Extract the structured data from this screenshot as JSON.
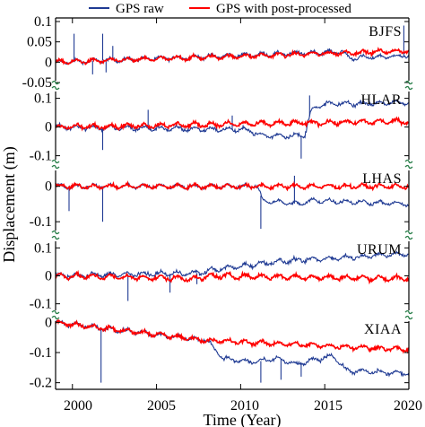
{
  "chart_data": {
    "type": "line",
    "xlabel": "Time (Year)",
    "ylabel": "Displacement (m)",
    "xlim": [
      1999,
      2020
    ],
    "x_ticks": [
      2000,
      2005,
      2010,
      2015,
      2020
    ],
    "x_tick_labels": [
      "2000",
      "2005",
      "2010",
      "2015",
      "2020"
    ],
    "legend": {
      "placement": "top",
      "entries": [
        {
          "name": "GPS raw",
          "color": "#1f3a93"
        },
        {
          "name": "GPS with post-processed",
          "color": "#ff0000"
        }
      ]
    },
    "grid": false,
    "panels": [
      {
        "station": "BJFS",
        "ylim": [
          -0.05,
          0.1
        ],
        "y_ticks": [
          0.1,
          0.05,
          0,
          -0.05
        ],
        "y_tick_labels": [
          "0.1",
          "0.05",
          "0",
          "-0.05"
        ],
        "series": [
          {
            "name": "GPS raw",
            "x": [
              1999,
              2016,
              2016.5,
              2020
            ],
            "y": [
              0.0,
              0.026,
              0.01,
              0.016
            ],
            "spikes": [
              [
                2000.1,
                0.07
              ],
              [
                2001.2,
                -0.03
              ],
              [
                2001.8,
                0.07
              ],
              [
                2002.0,
                -0.025
              ],
              [
                2002.4,
                0.04
              ],
              [
                2019.7,
                0.09
              ]
            ]
          },
          {
            "name": "GPS with post-processed",
            "x": [
              1999,
              2020
            ],
            "y": [
              0.0,
              0.028
            ]
          }
        ]
      },
      {
        "station": "HLAR",
        "ylim": [
          -0.12,
          0.13
        ],
        "y_ticks": [
          0.1,
          0,
          -0.1
        ],
        "y_tick_labels": [
          "0.1",
          "0",
          "-0.1"
        ],
        "series": [
          {
            "name": "GPS raw",
            "x": [
              1999,
              2010.5,
              2011.2,
              2013.8,
              2014.2,
              2015,
              2020
            ],
            "y": [
              0.0,
              -0.01,
              -0.03,
              -0.03,
              0.06,
              0.08,
              0.085
            ],
            "spikes": [
              [
                2001.8,
                -0.08
              ],
              [
                2004.5,
                0.06
              ],
              [
                2009.5,
                0.04
              ],
              [
                2013.6,
                -0.11
              ],
              [
                2014.1,
                0.11
              ]
            ]
          },
          {
            "name": "GPS with post-processed",
            "x": [
              1999,
              2020
            ],
            "y": [
              0.0,
              0.02
            ]
          }
        ]
      },
      {
        "station": "LHAS",
        "ylim": [
          -0.13,
          0.05
        ],
        "y_ticks": [
          0,
          -0.1
        ],
        "y_tick_labels": [
          "0",
          "-0.1"
        ],
        "series": [
          {
            "name": "GPS raw",
            "x": [
              1999,
              2011,
              2011.3,
              2013.5,
              2014.3,
              2020
            ],
            "y": [
              0.0,
              0.0,
              -0.04,
              -0.05,
              -0.04,
              -0.05
            ],
            "spikes": [
              [
                1999.8,
                -0.07
              ],
              [
                2001.8,
                -0.1
              ],
              [
                2011.2,
                -0.12
              ],
              [
                2013.2,
                0.03
              ]
            ]
          },
          {
            "name": "GPS with post-processed",
            "x": [
              1999,
              2020
            ],
            "y": [
              0.0,
              0.0
            ]
          }
        ]
      },
      {
        "station": "URUM",
        "ylim": [
          -0.13,
          0.13
        ],
        "y_ticks": [
          0.1,
          0,
          -0.1
        ],
        "y_tick_labels": [
          "0.1",
          "0",
          "-0.1"
        ],
        "series": [
          {
            "name": "GPS raw",
            "x": [
              1999,
              2007.5,
              2008.2,
              2012,
              2020
            ],
            "y": [
              0.0,
              0.01,
              0.02,
              0.05,
              0.08
            ],
            "spikes": [
              [
                2003.3,
                -0.09
              ],
              [
                2005.8,
                -0.06
              ],
              [
                2007.4,
                -0.03
              ]
            ]
          },
          {
            "name": "GPS with post-processed",
            "x": [
              1999,
              2007.5,
              2008.2,
              2020
            ],
            "y": [
              0.0,
              -0.01,
              0.0,
              -0.01
            ]
          }
        ]
      },
      {
        "station": "XIAA",
        "ylim": [
          -0.21,
          0.01
        ],
        "y_ticks": [
          0,
          -0.1,
          -0.2
        ],
        "y_tick_labels": [
          "0",
          "-0.1",
          "-0.2"
        ],
        "series": [
          {
            "name": "GPS raw",
            "x": [
              1999,
              2008,
              2009,
              2010.3,
              2011,
              2012.2,
              2013.3,
              2014,
              2015.5,
              2016.3,
              2020
            ],
            "y": [
              0.0,
              -0.06,
              -0.12,
              -0.13,
              -0.13,
              -0.12,
              -0.14,
              -0.13,
              -0.11,
              -0.16,
              -0.17
            ],
            "spikes": [
              [
                2001.7,
                -0.2
              ],
              [
                2011.2,
                -0.2
              ],
              [
                2012.4,
                -0.19
              ],
              [
                2013.6,
                -0.18
              ]
            ]
          },
          {
            "name": "GPS with post-processed",
            "x": [
              1999,
              2008,
              2020
            ],
            "y": [
              0.0,
              -0.06,
              -0.09
            ]
          }
        ]
      }
    ]
  }
}
